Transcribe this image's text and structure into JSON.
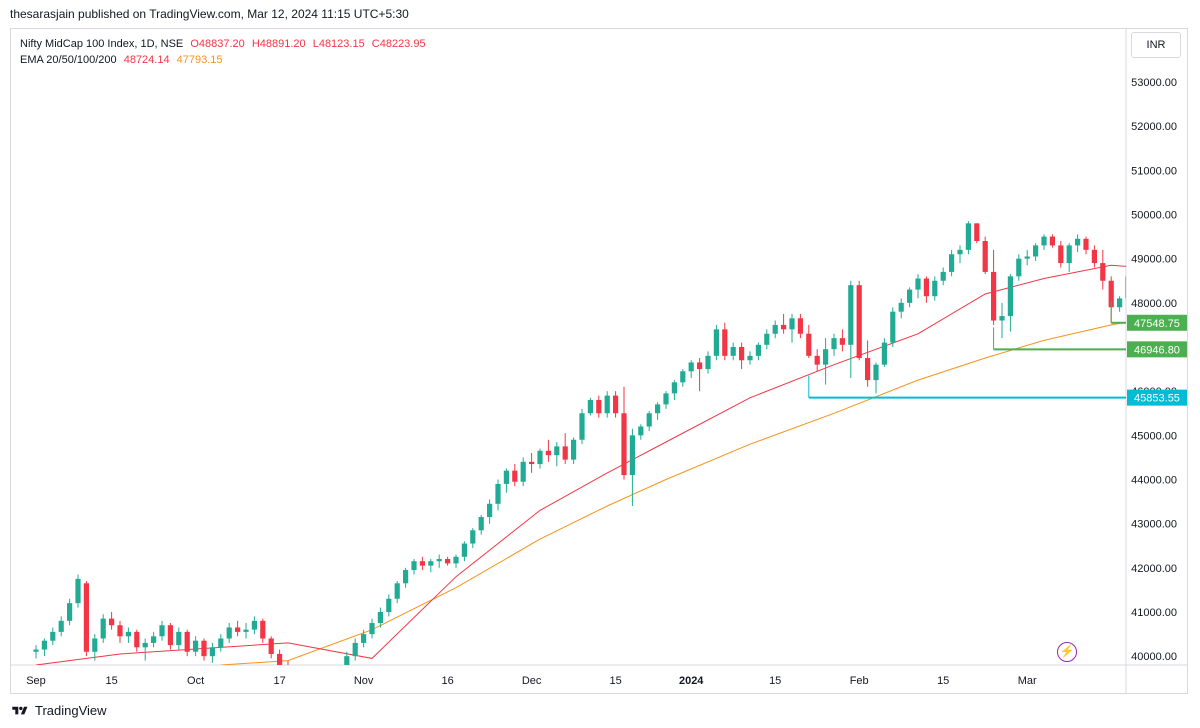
{
  "header": {
    "text": "thesarasjain published on TradingView.com, Mar 12, 2024 11:15 UTC+5:30"
  },
  "legend": {
    "line1_title": "Nifty MidCap 100 Index, 1D, NSE",
    "open": "O48837.20",
    "high": "H48891.20",
    "low": "L48123.15",
    "close": "C48223.95",
    "line2_title": "EMA 20/50/100/200",
    "ema20": "48724.14",
    "ema50": "47793.15"
  },
  "currency": "INR",
  "footer": {
    "brand": "TradingView"
  },
  "colors": {
    "up": "#22ab94",
    "down": "#f23645",
    "ema20": "#f23645",
    "ema50": "#f7931a",
    "green_line": "#4caf50",
    "cyan_line": "#00bcd4"
  },
  "chart_data": {
    "type": "candlestick",
    "ylim": [
      39800,
      54200
    ],
    "y_ticks": [
      "53000.00",
      "52000.00",
      "51000.00",
      "50000.00",
      "49000.00",
      "48000.00",
      "47000.00",
      "46000.00",
      "45000.00",
      "44000.00",
      "43000.00",
      "42000.00",
      "41000.00",
      "40000.00"
    ],
    "x_ticks": [
      {
        "label": "Sep",
        "bold": false
      },
      {
        "label": "15",
        "bold": false
      },
      {
        "label": "Oct",
        "bold": false
      },
      {
        "label": "17",
        "bold": false
      },
      {
        "label": "Nov",
        "bold": false
      },
      {
        "label": "16",
        "bold": false
      },
      {
        "label": "Dec",
        "bold": false
      },
      {
        "label": "15",
        "bold": false
      },
      {
        "label": "2024",
        "bold": true
      },
      {
        "label": "15",
        "bold": false
      },
      {
        "label": "Feb",
        "bold": false
      },
      {
        "label": "15",
        "bold": false
      },
      {
        "label": "Mar",
        "bold": false
      }
    ],
    "candles": [
      [
        40100,
        40250,
        39950,
        40150
      ],
      [
        40150,
        40400,
        40000,
        40350
      ],
      [
        40350,
        40650,
        40250,
        40550
      ],
      [
        40550,
        40900,
        40450,
        40800
      ],
      [
        40800,
        41300,
        40700,
        41200
      ],
      [
        41200,
        41850,
        41100,
        41750
      ],
      [
        41650,
        41700,
        40000,
        40100
      ],
      [
        40100,
        40500,
        39900,
        40400
      ],
      [
        40400,
        40950,
        40300,
        40850
      ],
      [
        40850,
        41000,
        40600,
        40700
      ],
      [
        40700,
        40800,
        40300,
        40450
      ],
      [
        40450,
        40650,
        40300,
        40550
      ],
      [
        40550,
        40600,
        40100,
        40200
      ],
      [
        40200,
        40400,
        39900,
        40300
      ],
      [
        40300,
        40550,
        40200,
        40450
      ],
      [
        40450,
        40800,
        40350,
        40700
      ],
      [
        40700,
        40750,
        40150,
        40250
      ],
      [
        40250,
        40650,
        40150,
        40550
      ],
      [
        40550,
        40600,
        40000,
        40100
      ],
      [
        40100,
        40450,
        40000,
        40350
      ],
      [
        40350,
        40400,
        39900,
        40000
      ],
      [
        40000,
        40300,
        39850,
        40200
      ],
      [
        40200,
        40500,
        40100,
        40400
      ],
      [
        40400,
        40750,
        40300,
        40650
      ],
      [
        40650,
        40800,
        40450,
        40550
      ],
      [
        40550,
        40750,
        40400,
        40600
      ],
      [
        40600,
        40900,
        40500,
        40800
      ],
      [
        40800,
        40850,
        40300,
        40400
      ],
      [
        40400,
        40450,
        39950,
        40050
      ],
      [
        40050,
        40150,
        39700,
        39800
      ],
      [
        39800,
        39900,
        39300,
        39400
      ],
      [
        39400,
        39600,
        39100,
        39500
      ],
      [
        39500,
        39650,
        39200,
        39300
      ],
      [
        39300,
        39450,
        38900,
        39000
      ],
      [
        39000,
        39300,
        38800,
        39200
      ],
      [
        39200,
        39600,
        39100,
        39500
      ],
      [
        39500,
        39800,
        39400,
        39700
      ],
      [
        39700,
        40100,
        39600,
        40000
      ],
      [
        40000,
        40400,
        39900,
        40300
      ],
      [
        40300,
        40600,
        40200,
        40500
      ],
      [
        40500,
        40850,
        40400,
        40750
      ],
      [
        40750,
        41100,
        40650,
        41000
      ],
      [
        41000,
        41400,
        40900,
        41300
      ],
      [
        41300,
        41700,
        41200,
        41650
      ],
      [
        41650,
        42000,
        41550,
        41950
      ],
      [
        41950,
        42200,
        41850,
        42150
      ],
      [
        42150,
        42250,
        41950,
        42050
      ],
      [
        42050,
        42200,
        41900,
        42150
      ],
      [
        42150,
        42300,
        42000,
        42200
      ],
      [
        42200,
        42250,
        42050,
        42100
      ],
      [
        42100,
        42300,
        42000,
        42250
      ],
      [
        42250,
        42600,
        42150,
        42550
      ],
      [
        42550,
        42900,
        42450,
        42850
      ],
      [
        42850,
        43200,
        42750,
        43150
      ],
      [
        43150,
        43550,
        43000,
        43450
      ],
      [
        43450,
        44000,
        43300,
        43900
      ],
      [
        43900,
        44250,
        43700,
        44200
      ],
      [
        44200,
        44350,
        43850,
        43950
      ],
      [
        43950,
        44500,
        43850,
        44400
      ],
      [
        44400,
        44600,
        44150,
        44350
      ],
      [
        44350,
        44700,
        44250,
        44650
      ],
      [
        44650,
        44900,
        44400,
        44550
      ],
      [
        44550,
        44850,
        44300,
        44750
      ],
      [
        44750,
        45050,
        44350,
        44450
      ],
      [
        44450,
        44950,
        44350,
        44900
      ],
      [
        44900,
        45600,
        44800,
        45500
      ],
      [
        45500,
        45850,
        45450,
        45800
      ],
      [
        45800,
        45900,
        45400,
        45500
      ],
      [
        45500,
        46000,
        45400,
        45900
      ],
      [
        45900,
        46000,
        45400,
        45500
      ],
      [
        45500,
        46100,
        44000,
        44100
      ],
      [
        44100,
        45150,
        43400,
        45000
      ],
      [
        45000,
        45250,
        44900,
        45200
      ],
      [
        45200,
        45550,
        45100,
        45500
      ],
      [
        45500,
        45750,
        45350,
        45700
      ],
      [
        45700,
        46000,
        45600,
        45950
      ],
      [
        45950,
        46250,
        45800,
        46200
      ],
      [
        46200,
        46500,
        46100,
        46450
      ],
      [
        46450,
        46700,
        46300,
        46650
      ],
      [
        46650,
        46750,
        46000,
        46500
      ],
      [
        46500,
        46900,
        46400,
        46800
      ],
      [
        46800,
        47500,
        46700,
        47400
      ],
      [
        47400,
        47550,
        46700,
        46800
      ],
      [
        46800,
        47100,
        46700,
        47000
      ],
      [
        47000,
        47100,
        46500,
        46700
      ],
      [
        46700,
        46900,
        46600,
        46800
      ],
      [
        46800,
        47100,
        46700,
        47050
      ],
      [
        47050,
        47400,
        46950,
        47300
      ],
      [
        47300,
        47600,
        47200,
        47500
      ],
      [
        47500,
        47750,
        47300,
        47400
      ],
      [
        47400,
        47750,
        47100,
        47650
      ],
      [
        47650,
        47750,
        47200,
        47300
      ],
      [
        47300,
        47500,
        46750,
        46800
      ],
      [
        46800,
        46950,
        46450,
        46600
      ],
      [
        46600,
        47200,
        46150,
        46950
      ],
      [
        46950,
        47300,
        46800,
        47200
      ],
      [
        47200,
        47400,
        46900,
        47050
      ],
      [
        47050,
        48500,
        46300,
        48400
      ],
      [
        48400,
        48500,
        46700,
        46750
      ],
      [
        46750,
        47150,
        46100,
        46250
      ],
      [
        46250,
        46650,
        45950,
        46600
      ],
      [
        46600,
        47200,
        46550,
        47100
      ],
      [
        47100,
        47900,
        47000,
        47800
      ],
      [
        47800,
        48100,
        47650,
        48000
      ],
      [
        48000,
        48350,
        47900,
        48300
      ],
      [
        48300,
        48650,
        48100,
        48550
      ],
      [
        48550,
        48600,
        48000,
        48150
      ],
      [
        48150,
        48600,
        48050,
        48500
      ],
      [
        48500,
        48800,
        48400,
        48700
      ],
      [
        48700,
        49200,
        48600,
        49100
      ],
      [
        49100,
        49300,
        48900,
        49200
      ],
      [
        49200,
        49850,
        49100,
        49800
      ],
      [
        49800,
        49800,
        49350,
        49400
      ],
      [
        49400,
        49500,
        48650,
        48700
      ],
      [
        48700,
        49200,
        47500,
        47600
      ],
      [
        47600,
        48000,
        47200,
        47700
      ],
      [
        47700,
        48650,
        47350,
        48600
      ],
      [
        48600,
        49100,
        48500,
        49000
      ],
      [
        49000,
        49200,
        48850,
        49050
      ],
      [
        49050,
        49350,
        48950,
        49300
      ],
      [
        49300,
        49550,
        49200,
        49500
      ],
      [
        49500,
        49550,
        49250,
        49300
      ],
      [
        49300,
        49400,
        48800,
        48900
      ],
      [
        48900,
        49350,
        48700,
        49300
      ],
      [
        49300,
        49550,
        49150,
        49450
      ],
      [
        49450,
        49500,
        49100,
        49200
      ],
      [
        49200,
        49300,
        48800,
        48900
      ],
      [
        48900,
        49200,
        48300,
        48500
      ],
      [
        48500,
        48600,
        47550,
        47900
      ],
      [
        47900,
        48150,
        47800,
        48100
      ],
      [
        48100,
        48700,
        48000,
        48600
      ],
      [
        48600,
        49000,
        48500,
        48900
      ],
      [
        48900,
        49200,
        48850,
        49150
      ],
      [
        49150,
        49350,
        49050,
        49300
      ],
      [
        49300,
        49400,
        48950,
        49050
      ],
      [
        49050,
        49250,
        48600,
        48700
      ],
      [
        48700,
        49150,
        48650,
        48950
      ],
      [
        48950,
        49250,
        48700,
        48900
      ],
      [
        48837.2,
        48891.2,
        48123.15,
        48223.95
      ]
    ],
    "ema20": [
      [
        0,
        39800
      ],
      [
        10,
        40050
      ],
      [
        30,
        40300
      ],
      [
        40,
        39950
      ],
      [
        50,
        41800
      ],
      [
        60,
        43300
      ],
      [
        68,
        44150
      ],
      [
        75,
        44850
      ],
      [
        85,
        45850
      ],
      [
        95,
        46600
      ],
      [
        105,
        47300
      ],
      [
        113,
        48200
      ],
      [
        120,
        48550
      ],
      [
        128,
        48850
      ],
      [
        137,
        48724.14
      ]
    ],
    "ema50": [
      [
        22,
        39800
      ],
      [
        30,
        39900
      ],
      [
        40,
        40600
      ],
      [
        50,
        41550
      ],
      [
        60,
        42650
      ],
      [
        68,
        43400
      ],
      [
        75,
        44000
      ],
      [
        85,
        44800
      ],
      [
        95,
        45500
      ],
      [
        105,
        46250
      ],
      [
        113,
        46750
      ],
      [
        120,
        47150
      ],
      [
        128,
        47500
      ],
      [
        137,
        47793.15
      ]
    ],
    "levels": [
      {
        "value": 47548.75,
        "label": "47548.75",
        "from_index": 128,
        "color_key": "green_line"
      },
      {
        "value": 46946.8,
        "label": "46946.80",
        "from_index": 114,
        "color_key": "green_line"
      },
      {
        "value": 45853.55,
        "label": "45853.55",
        "from_index": 92,
        "color_key": "cyan_line"
      }
    ]
  }
}
